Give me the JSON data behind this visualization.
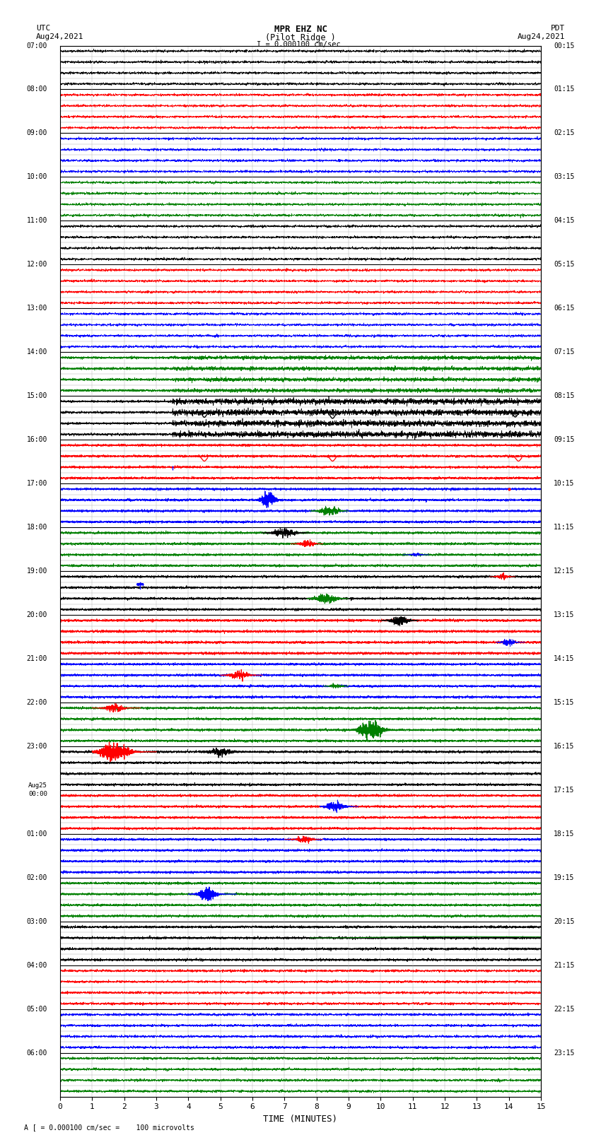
{
  "title_line1": "MPR EHZ NC",
  "title_line2": "(Pilot Ridge )",
  "title_line3": "I = 0.000100 cm/sec",
  "left_header1": "UTC",
  "left_header2": "Aug24,2021",
  "right_header1": "PDT",
  "right_header2": "Aug24,2021",
  "xlabel": "TIME (MINUTES)",
  "footer": "A [ = 0.000100 cm/sec =    100 microvolts",
  "num_rows": 24,
  "sub_rows": 4,
  "row_labels_left": [
    "07:00",
    "08:00",
    "09:00",
    "10:00",
    "11:00",
    "12:00",
    "13:00",
    "14:00",
    "15:00",
    "16:00",
    "17:00",
    "18:00",
    "19:00",
    "20:00",
    "21:00",
    "22:00",
    "23:00",
    "Aug25\n00:00",
    "01:00",
    "02:00",
    "03:00",
    "04:00",
    "05:00",
    "06:00"
  ],
  "row_labels_right": [
    "00:15",
    "01:15",
    "02:15",
    "03:15",
    "04:15",
    "05:15",
    "06:15",
    "07:15",
    "08:15",
    "09:15",
    "10:15",
    "11:15",
    "12:15",
    "13:15",
    "14:15",
    "15:15",
    "16:15",
    "17:15",
    "18:15",
    "19:15",
    "20:15",
    "21:15",
    "22:15",
    "23:15"
  ],
  "x_ticks": [
    0,
    1,
    2,
    3,
    4,
    5,
    6,
    7,
    8,
    9,
    10,
    11,
    12,
    13,
    14,
    15
  ],
  "x_min": 0,
  "x_max": 15,
  "background_color": "#ffffff",
  "major_grid_color": "#000000",
  "minor_grid_color": "#aaaaaa",
  "trace_color_cycle": [
    "black",
    "red",
    "blue",
    "green"
  ],
  "seed": 42
}
